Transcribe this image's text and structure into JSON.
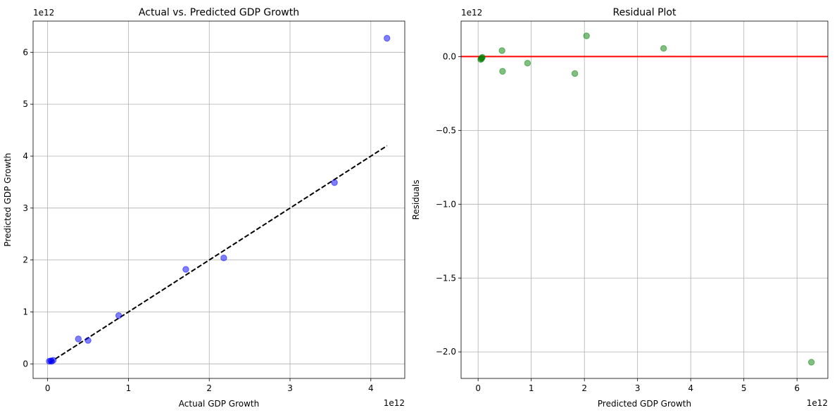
{
  "chart_data": [
    {
      "type": "scatter",
      "title": "Actual vs. Predicted GDP Growth",
      "xlabel": "Actual GDP Growth",
      "ylabel": "Predicted GDP Growth",
      "x_offset_text": "1e12",
      "y_offset_text": "1e12",
      "xlim": [
        -0.18,
        4.42
      ],
      "ylim": [
        -0.28,
        6.6
      ],
      "xticks": [
        0,
        1,
        2,
        3,
        4
      ],
      "yticks": [
        0,
        1,
        2,
        3,
        4,
        5,
        6
      ],
      "xtick_labels": [
        "0",
        "1",
        "2",
        "3",
        "4"
      ],
      "ytick_labels": [
        "0",
        "1",
        "2",
        "3",
        "4",
        "5",
        "6"
      ],
      "grid": true,
      "point_color": "#0000ff",
      "line_color": "#000000",
      "reference_line": {
        "x": [
          0.02,
          4.2
        ],
        "y": [
          0.02,
          4.2
        ],
        "style": "dashed"
      },
      "points": {
        "x": [
          0.02,
          0.04,
          0.05,
          0.07,
          0.38,
          0.5,
          0.88,
          1.71,
          2.18,
          3.55,
          4.2
        ],
        "y": [
          0.05,
          0.06,
          0.05,
          0.07,
          0.48,
          0.45,
          0.93,
          1.82,
          2.04,
          3.49,
          6.27
        ]
      }
    },
    {
      "type": "scatter",
      "title": "Residual Plot",
      "xlabel": "Predicted GDP Growth",
      "ylabel": "Residuals",
      "x_offset_text": "1e12",
      "y_offset_text": "1e12",
      "xlim": [
        -0.32,
        6.58
      ],
      "ylim": [
        -2.18,
        0.24
      ],
      "xticks": [
        0,
        1,
        2,
        3,
        4,
        5,
        6
      ],
      "yticks": [
        -2.0,
        -1.5,
        -1.0,
        -0.5,
        0.0
      ],
      "xtick_labels": [
        "0",
        "1",
        "2",
        "3",
        "4",
        "5",
        "6"
      ],
      "ytick_labels": [
        "−2.0",
        "−1.5",
        "−1.0",
        "−0.5",
        "0.0"
      ],
      "grid": true,
      "point_color": "#008000",
      "zero_line_color": "#ff0000",
      "zero_line": 0.0,
      "points": {
        "x": [
          0.05,
          0.06,
          0.07,
          0.08,
          0.45,
          0.46,
          0.93,
          1.82,
          2.04,
          3.49,
          6.27
        ],
        "y": [
          -0.02,
          -0.015,
          -0.01,
          -0.005,
          0.04,
          -0.1,
          -0.045,
          -0.115,
          0.14,
          0.055,
          -2.07
        ]
      }
    }
  ]
}
